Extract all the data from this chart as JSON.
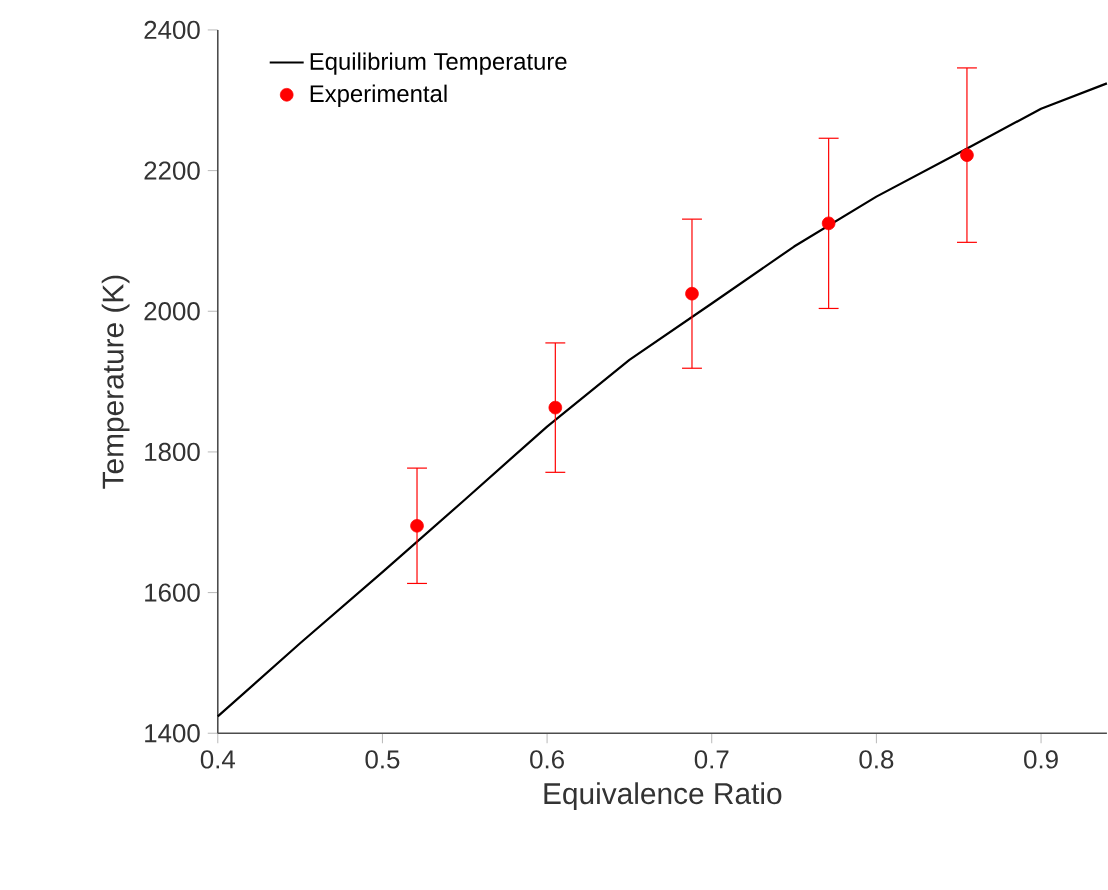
{
  "chart_data": {
    "type": "line",
    "xlabel": "Equivalence Ratio",
    "ylabel": "Temperature (K)",
    "xlim": [
      0.4,
      0.94
    ],
    "ylim": [
      1400,
      2400
    ],
    "xticks": [
      0.4,
      0.5,
      0.6,
      0.7,
      0.8,
      0.9
    ],
    "yticks": [
      1400,
      1600,
      1800,
      2000,
      2200,
      2400
    ],
    "legend": "top left",
    "grid": false,
    "series": [
      {
        "name": "Equilibrium Temperature",
        "color": "#000000",
        "marker": "none",
        "line_style": "solid",
        "x": [
          0.4,
          0.45,
          0.5,
          0.55,
          0.6,
          0.65,
          0.7,
          0.75,
          0.8,
          0.85,
          0.9,
          0.94
        ],
        "values": [
          1424,
          1528,
          1629,
          1732,
          1836,
          1931,
          2011,
          2092,
          2163,
          2225,
          2288,
          2324
        ]
      },
      {
        "name": "Experimental",
        "type": "scatter",
        "color": "#ff0000",
        "marker": "circle",
        "x": [
          0.521,
          0.605,
          0.688,
          0.771,
          0.855
        ],
        "values": [
          1695,
          1863,
          2025,
          2125,
          2222
        ],
        "errors": [
          82,
          92,
          106,
          121,
          124
        ]
      }
    ]
  }
}
